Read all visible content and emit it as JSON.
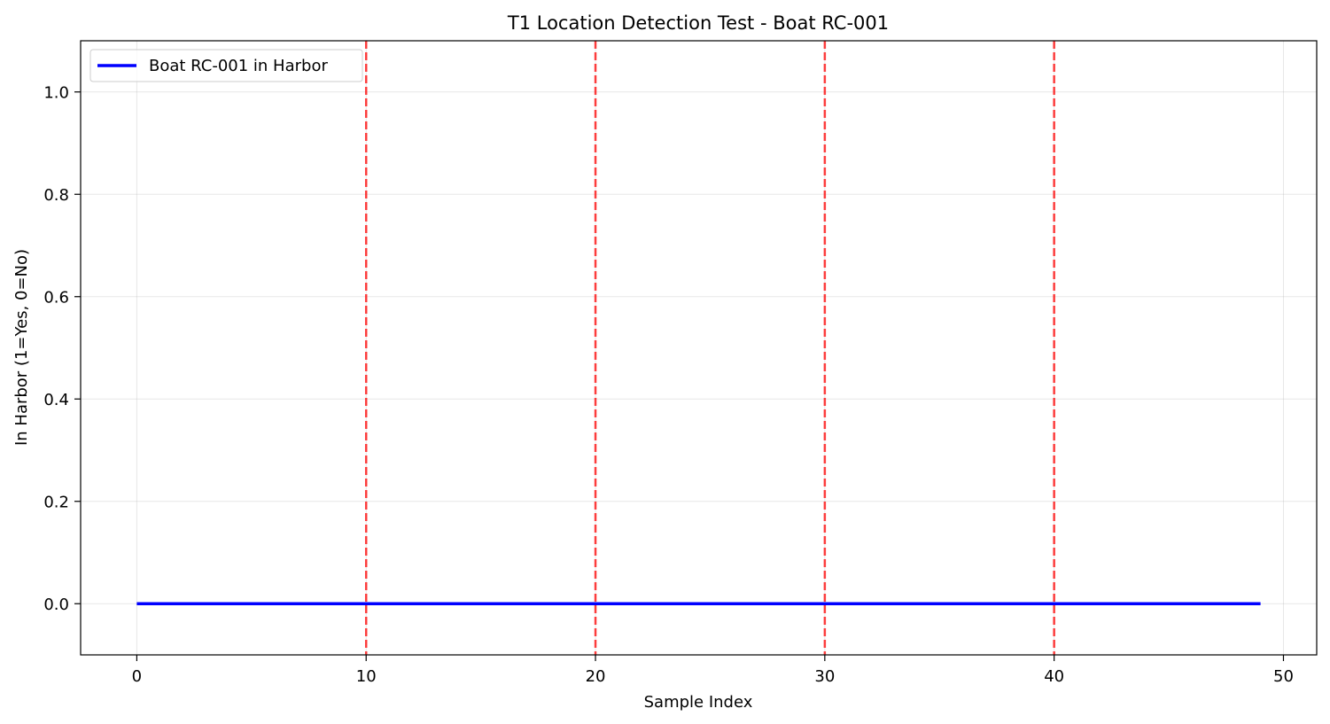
{
  "chart_data": {
    "type": "line",
    "title": "T1 Location Detection Test - Boat RC-001",
    "xlabel": "Sample Index",
    "ylabel": "In Harbor (1=Yes, 0=No)",
    "xlim": [
      -2.45,
      51.45
    ],
    "ylim": [
      -0.1,
      1.1
    ],
    "xticks": [
      0,
      10,
      20,
      30,
      40,
      50
    ],
    "xtick_labels": [
      "0",
      "10",
      "20",
      "30",
      "40",
      "50"
    ],
    "yticks": [
      0.0,
      0.2,
      0.4,
      0.6,
      0.8,
      1.0
    ],
    "ytick_labels": [
      "0.0",
      "0.2",
      "0.4",
      "0.6",
      "0.8",
      "1.0"
    ],
    "grid": true,
    "legend_position": "top-left",
    "series": [
      {
        "name": "Boat RC-001 in Harbor",
        "color": "#0000ff",
        "x": [
          0,
          1,
          2,
          3,
          4,
          5,
          6,
          7,
          8,
          9,
          10,
          11,
          12,
          13,
          14,
          15,
          16,
          17,
          18,
          19,
          20,
          21,
          22,
          23,
          24,
          25,
          26,
          27,
          28,
          29,
          30,
          31,
          32,
          33,
          34,
          35,
          36,
          37,
          38,
          39,
          40,
          41,
          42,
          43,
          44,
          45,
          46,
          47,
          48,
          49
        ],
        "values": [
          0,
          0,
          0,
          0,
          0,
          0,
          0,
          0,
          0,
          0,
          0,
          0,
          0,
          0,
          0,
          0,
          0,
          0,
          0,
          0,
          0,
          0,
          0,
          0,
          0,
          0,
          0,
          0,
          0,
          0,
          0,
          0,
          0,
          0,
          0,
          0,
          0,
          0,
          0,
          0,
          0,
          0,
          0,
          0,
          0,
          0,
          0,
          0,
          0,
          0
        ]
      }
    ],
    "vlines": {
      "x": [
        10,
        20,
        30,
        40
      ],
      "color": "#ff0000",
      "style": "dashed"
    }
  }
}
